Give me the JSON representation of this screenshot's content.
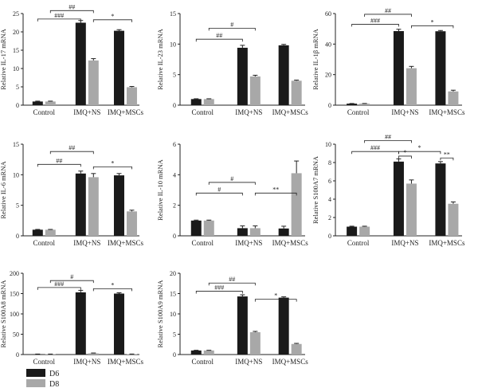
{
  "colors": {
    "D6": "#1a1a1a",
    "D8": "#a8a8a8",
    "axis": "#222222"
  },
  "legend": {
    "d6": "D6",
    "d8": "D8"
  },
  "chart_data": [
    {
      "type": "bar",
      "ylabel": "Relative IL-17 mRNA",
      "categories": [
        "Control",
        "IMQ+NS",
        "IMQ+MSCs"
      ],
      "series": [
        {
          "name": "D6",
          "values": [
            1,
            22.5,
            20.3
          ]
        },
        {
          "name": "D8",
          "values": [
            1,
            12.2,
            4.9
          ]
        }
      ],
      "errors": {
        "D6": [
          0.1,
          0.6,
          0.3
        ],
        "D8": [
          0.1,
          0.5,
          0.2
        ]
      },
      "ylim": [
        0,
        25
      ],
      "yticks": [
        0,
        5,
        10,
        15,
        20,
        25
      ],
      "annotations": [
        {
          "label": "###",
          "from": [
            0,
            "D6"
          ],
          "to": [
            1,
            "D6"
          ],
          "y": 23.5
        },
        {
          "label": "##",
          "from": [
            0,
            "D8"
          ],
          "to": [
            1,
            "D8"
          ],
          "y": 25.8
        },
        {
          "label": "*",
          "from": [
            1,
            "D8"
          ],
          "to": [
            2,
            "D8"
          ],
          "y": 23.3
        }
      ]
    },
    {
      "type": "bar",
      "ylabel": "Relative IL-23 mRNA",
      "categories": [
        "Control",
        "IMQ+NS",
        "IMQ+MSCs"
      ],
      "series": [
        {
          "name": "D6",
          "values": [
            1,
            9.4,
            9.8
          ]
        },
        {
          "name": "D8",
          "values": [
            1,
            4.7,
            4.0
          ]
        }
      ],
      "errors": {
        "D6": [
          0.05,
          0.4,
          0.15
        ],
        "D8": [
          0.05,
          0.2,
          0.1
        ]
      },
      "ylim": [
        0,
        15
      ],
      "yticks": [
        0,
        5,
        10,
        15
      ],
      "annotations": [
        {
          "label": "##",
          "from": [
            0,
            "D6"
          ],
          "to": [
            1,
            "D6"
          ],
          "y": 10.8
        },
        {
          "label": "#",
          "from": [
            0,
            "D8"
          ],
          "to": [
            1,
            "D8"
          ],
          "y": 12.6
        }
      ]
    },
    {
      "type": "bar",
      "ylabel": "Relative IL-1β mRNA",
      "categories": [
        "Control",
        "IMQ+NS",
        "IMQ+MSCs"
      ],
      "series": [
        {
          "name": "D6",
          "values": [
            1,
            48.5,
            48.4
          ]
        },
        {
          "name": "D8",
          "values": [
            1,
            24.2,
            9.0
          ]
        }
      ],
      "errors": {
        "D6": [
          0.1,
          1.2,
          0.5
        ],
        "D8": [
          0.1,
          1.2,
          0.8
        ]
      },
      "ylim": [
        0,
        60
      ],
      "yticks": [
        0,
        20,
        40,
        60
      ],
      "annotations": [
        {
          "label": "###",
          "from": [
            0,
            "D6"
          ],
          "to": [
            1,
            "D6"
          ],
          "y": 53
        },
        {
          "label": "##",
          "from": [
            0,
            "D8"
          ],
          "to": [
            1,
            "D8"
          ],
          "y": 59.5
        },
        {
          "label": "*",
          "from": [
            1,
            "D8"
          ],
          "to": [
            2,
            "D8"
          ],
          "y": 52
        }
      ]
    },
    {
      "type": "bar",
      "ylabel": "Relative IL-6 mRNA",
      "categories": [
        "Control",
        "IMQ+NS",
        "IMQ+MSCs"
      ],
      "series": [
        {
          "name": "D6",
          "values": [
            1,
            10.2,
            9.9
          ]
        },
        {
          "name": "D8",
          "values": [
            1,
            9.6,
            4.0
          ]
        }
      ],
      "errors": {
        "D6": [
          0.05,
          0.4,
          0.3
        ],
        "D8": [
          0.05,
          0.6,
          0.2
        ]
      },
      "ylim": [
        0,
        15
      ],
      "yticks": [
        0,
        5,
        10,
        15
      ],
      "annotations": [
        {
          "label": "##",
          "from": [
            0,
            "D6"
          ],
          "to": [
            1,
            "D6"
          ],
          "y": 11.7
        },
        {
          "label": "##",
          "from": [
            0,
            "D8"
          ],
          "to": [
            1,
            "D8"
          ],
          "y": 13.8
        },
        {
          "label": "*",
          "from": [
            1,
            "D8"
          ],
          "to": [
            2,
            "D8"
          ],
          "y": 11.3
        }
      ]
    },
    {
      "type": "bar",
      "ylabel": "Relative IL-10 mRNA",
      "categories": [
        "Control",
        "IMQ+NS",
        "IMQ+MSCs"
      ],
      "series": [
        {
          "name": "D6",
          "values": [
            1,
            0.5,
            0.48
          ]
        },
        {
          "name": "D8",
          "values": [
            1,
            0.5,
            4.1
          ]
        }
      ],
      "errors": {
        "D6": [
          0.03,
          0.15,
          0.15
        ],
        "D8": [
          0.03,
          0.15,
          0.8
        ]
      },
      "ylim": [
        0,
        6
      ],
      "yticks": [
        0,
        2,
        4,
        6
      ],
      "annotations": [
        {
          "label": "#",
          "from": [
            0,
            "D6"
          ],
          "to": [
            1,
            "D6"
          ],
          "y": 2.8
        },
        {
          "label": "#",
          "from": [
            0,
            "D8"
          ],
          "to": [
            1,
            "D8"
          ],
          "y": 3.5
        },
        {
          "label": "**",
          "from": [
            1,
            "D8"
          ],
          "to": [
            2,
            "D8"
          ],
          "y": 2.8
        }
      ]
    },
    {
      "type": "bar",
      "ylabel": "Relative S100A7 mRNA",
      "categories": [
        "Control",
        "IMQ+NS",
        "IMQ+MSCs"
      ],
      "series": [
        {
          "name": "D6",
          "values": [
            1,
            8.1,
            7.9
          ]
        },
        {
          "name": "D8",
          "values": [
            1,
            5.7,
            3.5
          ]
        }
      ],
      "errors": {
        "D6": [
          0.05,
          0.3,
          0.2
        ],
        "D8": [
          0.05,
          0.4,
          0.2
        ]
      },
      "ylim": [
        0,
        10
      ],
      "yticks": [
        0,
        2,
        4,
        6,
        8,
        10
      ],
      "annotations": [
        {
          "label": "###",
          "from": [
            0,
            "D6"
          ],
          "to": [
            1,
            "D6"
          ],
          "y": 9.2
        },
        {
          "label": "##",
          "from": [
            0,
            "D8"
          ],
          "to": [
            1,
            "D8"
          ],
          "y": 10.4
        },
        {
          "label": "*",
          "from": [
            1,
            "D6"
          ],
          "to": [
            1,
            "D8"
          ],
          "y": 8.7
        },
        {
          "label": "*",
          "from": [
            1,
            "D6"
          ],
          "to": [
            2,
            "D6"
          ],
          "y": 9.2
        },
        {
          "label": "**",
          "from": [
            2,
            "D6"
          ],
          "to": [
            2,
            "D8"
          ],
          "y": 8.5
        }
      ]
    },
    {
      "type": "bar",
      "ylabel": "Relative S100A8 mRNA",
      "categories": [
        "Control",
        "IMQ+NS",
        "IMQ+MSCs"
      ],
      "series": [
        {
          "name": "D6",
          "values": [
            1,
            153,
            150
          ]
        },
        {
          "name": "D8",
          "values": [
            1,
            3,
            1
          ]
        }
      ],
      "errors": {
        "D6": [
          0.2,
          5,
          2
        ],
        "D8": [
          0.2,
          0.8,
          0.3
        ]
      },
      "ylim": [
        0,
        200
      ],
      "yticks": [
        0,
        50,
        100,
        150,
        200
      ],
      "annotations": [
        {
          "label": "###",
          "from": [
            0,
            "D6"
          ],
          "to": [
            1,
            "D6"
          ],
          "y": 165
        },
        {
          "label": "#",
          "from": [
            0,
            "D8"
          ],
          "to": [
            1,
            "D8"
          ],
          "y": 182
        },
        {
          "label": "*",
          "from": [
            1,
            "D8"
          ],
          "to": [
            2,
            "D8"
          ],
          "y": 162
        }
      ]
    },
    {
      "type": "bar",
      "ylabel": "Relative S100A9 mRNA",
      "categories": [
        "Control",
        "IMQ+NS",
        "IMQ+MSCs"
      ],
      "series": [
        {
          "name": "D6",
          "values": [
            1,
            14.3,
            14.0
          ]
        },
        {
          "name": "D8",
          "values": [
            1,
            5.5,
            2.6
          ]
        }
      ],
      "errors": {
        "D6": [
          0.05,
          0.4,
          0.2
        ],
        "D8": [
          0.05,
          0.2,
          0.15
        ]
      },
      "ylim": [
        0,
        20
      ],
      "yticks": [
        0,
        5,
        10,
        15,
        20
      ],
      "annotations": [
        {
          "label": "###",
          "from": [
            0,
            "D6"
          ],
          "to": [
            1,
            "D6"
          ],
          "y": 15.6
        },
        {
          "label": "##",
          "from": [
            0,
            "D8"
          ],
          "to": [
            1,
            "D8"
          ],
          "y": 17.6
        },
        {
          "label": "*",
          "from": [
            1,
            "D8"
          ],
          "to": [
            2,
            "D8"
          ],
          "y": 13.6
        }
      ]
    }
  ]
}
